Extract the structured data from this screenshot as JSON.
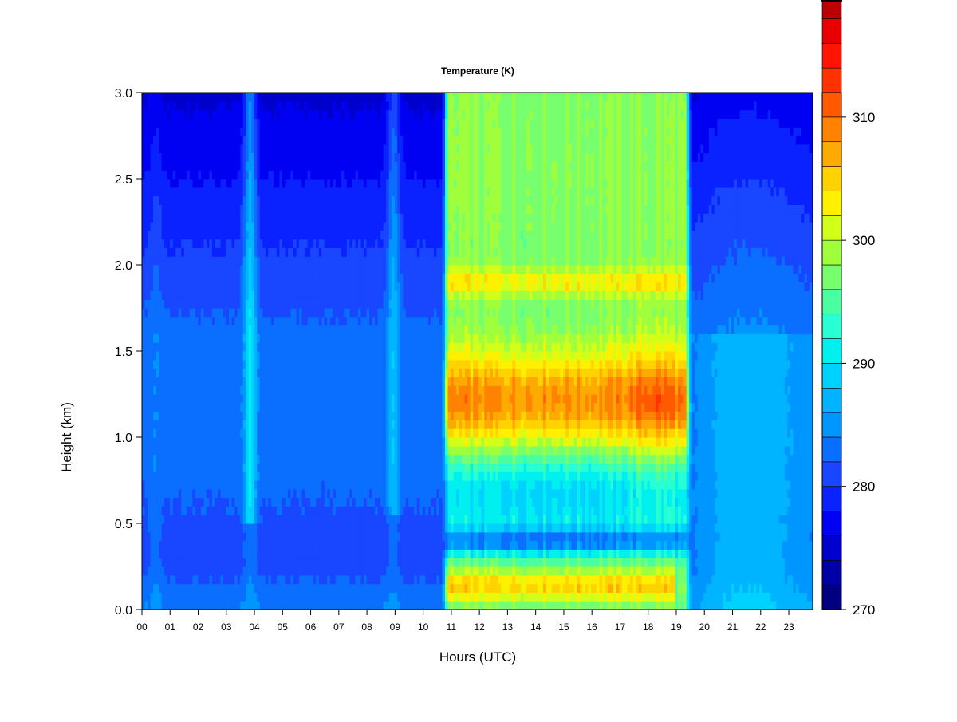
{
  "chart_data": {
    "type": "heatmap",
    "title": "Temperature (K)",
    "xlabel": "Hours (UTC)",
    "ylabel": "Height (km)",
    "x_ticks": [
      "00",
      "01",
      "02",
      "03",
      "04",
      "05",
      "06",
      "07",
      "08",
      "09",
      "10",
      "11",
      "12",
      "13",
      "14",
      "15",
      "16",
      "17",
      "18",
      "19",
      "20",
      "21",
      "22",
      "23"
    ],
    "xlim": [
      0,
      23.85
    ],
    "y_ticks": [
      "0.0",
      "0.5",
      "1.0",
      "1.5",
      "2.0",
      "2.5",
      "3.0"
    ],
    "ylim": [
      0,
      3.0
    ],
    "colorbar": {
      "min": 270,
      "max": 312,
      "step": 2,
      "ticks": [
        "270",
        "280",
        "290",
        "300",
        "310"
      ],
      "colors": [
        "#000080",
        "#0000a6",
        "#0000cc",
        "#0000f2",
        "#0a22ff",
        "#1947ff",
        "#0a6fff",
        "#0096ff",
        "#00b4ff",
        "#00d2ff",
        "#00f0f0",
        "#28ffd2",
        "#4bffa0",
        "#78ff6e",
        "#a0ff3c",
        "#d2ff19",
        "#fff000",
        "#ffd200",
        "#ffaa00",
        "#ff8200",
        "#ff5a00",
        "#ff3200",
        "#ff1400",
        "#e60000",
        "#bd0000",
        "#8c0000"
      ]
    },
    "grid": false,
    "description_fields": {
      "low_level_warm_band_km": [
        0.05,
        0.25
      ],
      "warm_period_hours": [
        10.7,
        19.6
      ],
      "warm_streak_hours": [
        3.8,
        8.9
      ],
      "maximum_temperature_core_height_km": 1.2
    }
  }
}
